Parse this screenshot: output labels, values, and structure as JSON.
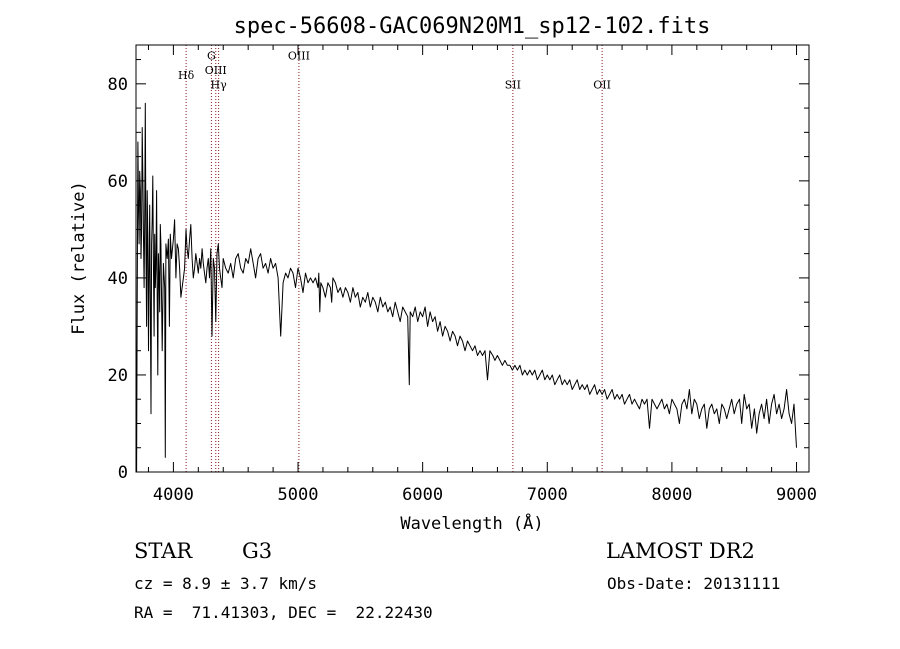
{
  "chart_data": {
    "type": "line",
    "title": "spec-56608-GAC069N20M1_sp12-102.fits",
    "xlabel": "Wavelength (Å)",
    "ylabel": "Flux (relative)",
    "xlim": [
      3700,
      9100
    ],
    "ylim": [
      0,
      88
    ],
    "xticks": [
      4000,
      5000,
      6000,
      7000,
      8000,
      9000
    ],
    "yticks": [
      0,
      20,
      40,
      60,
      80
    ],
    "grid": false,
    "legend": "none",
    "line_color": "#000000",
    "marker_color": "#8b1a1a",
    "emission_lines": [
      {
        "label": "Hδ",
        "x": 4102,
        "label_y": 81
      },
      {
        "label": "G",
        "x": 4305,
        "label_y": 85
      },
      {
        "label": "OIII",
        "x": 4340,
        "label_y": 82
      },
      {
        "label": "Hγ",
        "x": 4363,
        "label_y": 79
      },
      {
        "label": "OIII",
        "x": 5007,
        "label_y": 85
      },
      {
        "label": "SII",
        "x": 6724,
        "label_y": 79
      },
      {
        "label": "OII",
        "x": 7440,
        "label_y": 79
      }
    ],
    "series": [
      {
        "x": [
          3705,
          3710,
          3715,
          3720,
          3725,
          3730,
          3735,
          3740,
          3745,
          3750,
          3755,
          3760,
          3765,
          3770,
          3775,
          3780,
          3785,
          3790,
          3795,
          3800,
          3805,
          3810,
          3815,
          3820,
          3825,
          3830,
          3835,
          3840,
          3845,
          3850,
          3855,
          3860,
          3865,
          3870,
          3875,
          3880,
          3885,
          3890,
          3895,
          3900,
          3910,
          3920,
          3930,
          3935,
          3940,
          3950,
          3960,
          3968,
          3975,
          3985,
          4000,
          4010,
          4020,
          4030,
          4040,
          4050,
          4060,
          4070,
          4080,
          4090,
          4101,
          4110,
          4120,
          4130,
          4140,
          4150,
          4160,
          4170,
          4180,
          4190,
          4200,
          4210,
          4220,
          4230,
          4240,
          4250,
          4260,
          4270,
          4280,
          4290,
          4300,
          4310,
          4320,
          4330,
          4340,
          4350,
          4360,
          4370,
          4380,
          4390,
          4400,
          4420,
          4440,
          4460,
          4480,
          4500,
          4520,
          4540,
          4560,
          4580,
          4600,
          4620,
          4640,
          4660,
          4680,
          4700,
          4720,
          4740,
          4760,
          4780,
          4800,
          4820,
          4840,
          4861,
          4880,
          4900,
          4920,
          4940,
          4960,
          4980,
          5000,
          5020,
          5040,
          5060,
          5080,
          5100,
          5120,
          5140,
          5160,
          5167,
          5175,
          5183,
          5200,
          5220,
          5240,
          5260,
          5270,
          5280,
          5300,
          5320,
          5340,
          5360,
          5380,
          5400,
          5420,
          5440,
          5460,
          5480,
          5500,
          5520,
          5540,
          5560,
          5580,
          5600,
          5620,
          5640,
          5660,
          5680,
          5700,
          5720,
          5740,
          5760,
          5780,
          5800,
          5820,
          5840,
          5860,
          5880,
          5893,
          5900,
          5920,
          5940,
          5960,
          5980,
          6000,
          6020,
          6040,
          6060,
          6080,
          6100,
          6120,
          6140,
          6160,
          6180,
          6200,
          6220,
          6240,
          6260,
          6280,
          6300,
          6320,
          6340,
          6360,
          6380,
          6400,
          6420,
          6440,
          6460,
          6480,
          6500,
          6520,
          6540,
          6563,
          6580,
          6600,
          6620,
          6640,
          6660,
          6680,
          6700,
          6720,
          6740,
          6760,
          6780,
          6800,
          6820,
          6840,
          6860,
          6880,
          6900,
          6920,
          6940,
          6960,
          6980,
          7000,
          7020,
          7040,
          7060,
          7080,
          7100,
          7120,
          7140,
          7160,
          7180,
          7200,
          7220,
          7240,
          7260,
          7280,
          7300,
          7320,
          7340,
          7360,
          7380,
          7400,
          7420,
          7440,
          7460,
          7480,
          7500,
          7520,
          7540,
          7560,
          7580,
          7600,
          7620,
          7640,
          7660,
          7680,
          7700,
          7720,
          7740,
          7760,
          7780,
          7800,
          7820,
          7840,
          7860,
          7880,
          7900,
          7920,
          7940,
          7960,
          7980,
          8000,
          8020,
          8040,
          8060,
          8080,
          8100,
          8120,
          8140,
          8160,
          8180,
          8200,
          8220,
          8240,
          8260,
          8280,
          8300,
          8320,
          8340,
          8360,
          8380,
          8400,
          8420,
          8440,
          8460,
          8480,
          8500,
          8520,
          8542,
          8560,
          8580,
          8600,
          8620,
          8640,
          8662,
          8680,
          8700,
          8720,
          8740,
          8760,
          8780,
          8800,
          8820,
          8840,
          8860,
          8880,
          8900,
          8920,
          8940,
          8960,
          8980,
          9000
        ],
        "values": [
          0,
          35,
          68,
          55,
          47,
          62,
          58,
          44,
          50,
          71,
          60,
          48,
          38,
          52,
          76,
          45,
          30,
          58,
          49,
          25,
          41,
          55,
          36,
          12,
          47,
          52,
          61,
          44,
          28,
          49,
          38,
          42,
          58,
          36,
          20,
          45,
          40,
          33,
          51,
          47,
          25,
          43,
          38,
          3,
          47,
          44,
          48,
          30,
          49,
          44,
          48,
          52,
          40,
          47,
          46,
          42,
          36,
          38,
          40,
          42,
          50,
          46,
          44,
          48,
          51,
          44,
          40,
          42,
          45,
          43,
          41,
          44,
          42,
          46,
          43,
          41,
          39,
          42,
          44,
          40,
          46,
          28,
          44,
          42,
          31,
          45,
          47,
          42,
          40,
          38,
          44,
          42,
          41,
          43,
          40,
          44,
          45,
          42,
          41,
          44,
          43,
          46,
          43,
          40,
          44,
          45,
          42,
          43,
          41,
          44,
          42,
          43,
          40,
          28,
          39,
          41,
          40,
          42,
          41,
          38,
          42,
          40,
          37,
          41,
          39,
          40,
          39,
          40,
          38,
          41,
          33,
          39,
          38,
          36,
          39,
          38,
          35,
          40,
          39,
          37,
          38,
          36,
          38,
          37,
          35,
          38,
          36,
          37,
          34,
          36,
          35,
          37,
          34,
          36,
          35,
          33,
          36,
          34,
          35,
          33,
          34,
          32,
          35,
          33,
          31,
          34,
          33,
          32,
          18,
          33,
          32,
          34,
          31,
          33,
          32,
          34,
          30,
          33,
          31,
          32,
          29,
          31,
          28,
          30,
          29,
          27,
          29,
          28,
          26,
          28,
          27,
          25,
          27,
          26,
          25,
          26,
          24,
          25,
          24,
          25,
          19,
          25,
          24,
          23,
          24,
          23,
          22,
          23,
          22,
          22,
          21,
          22,
          21,
          22,
          20,
          21,
          20,
          21,
          20,
          21,
          19,
          20,
          21,
          19,
          20,
          19,
          20,
          18,
          19,
          20,
          18,
          19,
          18,
          19,
          17,
          18,
          19,
          17,
          18,
          17,
          18,
          16,
          17,
          18,
          16,
          17,
          16,
          17,
          15,
          16,
          17,
          15,
          16,
          15,
          16,
          14,
          15,
          16,
          14,
          15,
          14,
          13,
          15,
          14,
          15,
          9,
          15,
          14,
          13,
          14,
          15,
          13,
          14,
          12,
          15,
          14,
          13,
          10,
          14,
          15,
          13,
          17,
          12,
          15,
          14,
          11,
          13,
          14,
          9,
          13,
          14,
          12,
          13,
          10,
          14,
          13,
          11,
          13,
          15,
          12,
          14,
          15,
          10,
          16,
          13,
          14,
          9,
          13,
          8,
          12,
          14,
          11,
          15,
          10,
          14,
          16,
          12,
          14,
          11,
          13,
          17,
          12,
          10,
          14,
          5
        ]
      }
    ]
  },
  "info": {
    "obj_class": "STAR",
    "subclass": "G3",
    "survey": "LAMOST DR2",
    "redshift": "cz = 8.9 ± 3.7 km/s",
    "obs_date": "Obs-Date: 20131111",
    "coords": "RA =  71.41303, DEC =  22.22430"
  }
}
